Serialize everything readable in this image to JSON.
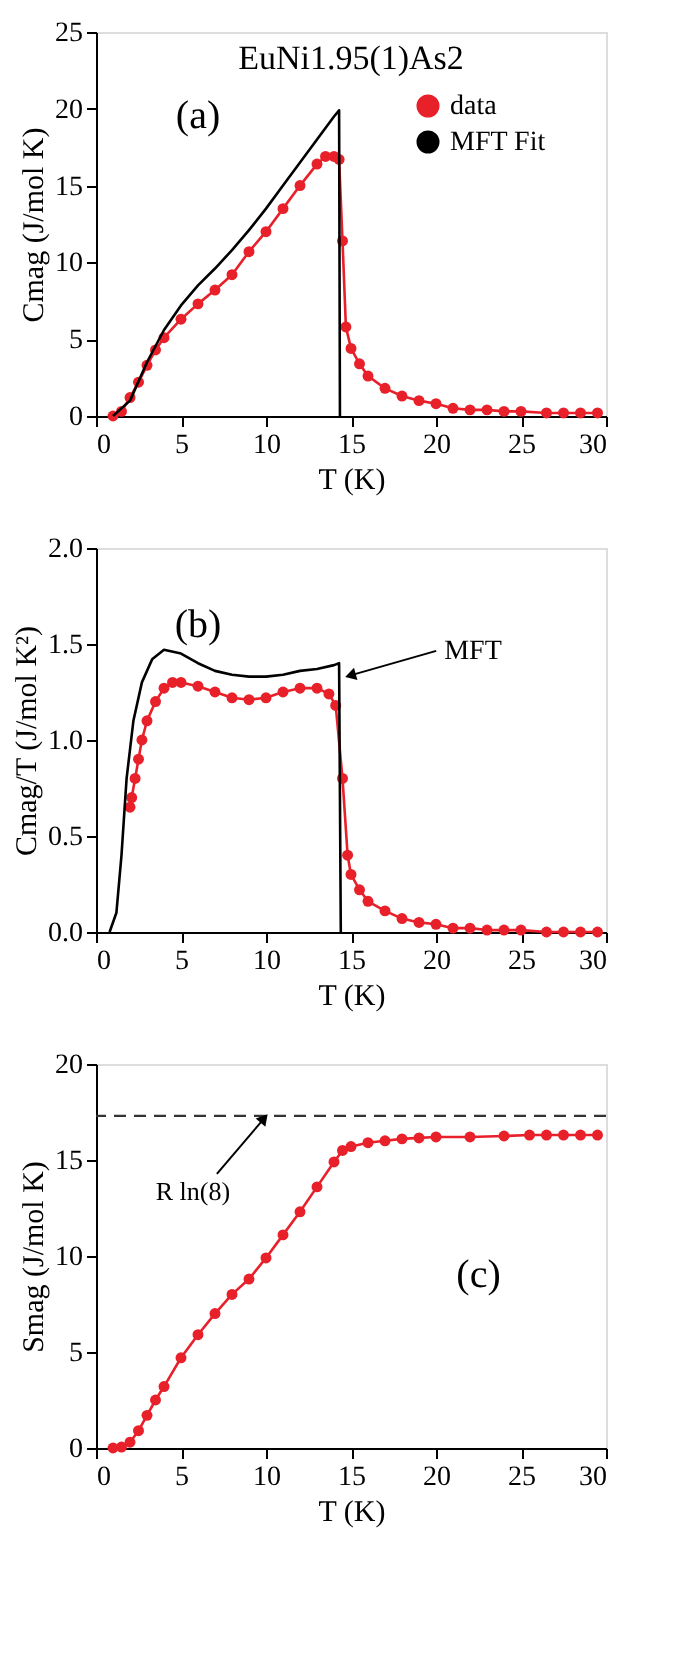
{
  "chart_data": [
    {
      "type": "line",
      "xlabel": "T (K)",
      "ylabel": "Cmag (J/mol K)",
      "xlim": [
        0,
        30
      ],
      "ylim": [
        0,
        25
      ],
      "xticks": [
        0,
        5,
        10,
        15,
        20,
        25,
        30
      ],
      "yticks": [
        0,
        5,
        10,
        15,
        20,
        25
      ],
      "grid": false,
      "legend": "top right",
      "annotations": [
        "EuNi1.95(1)As2",
        "(a)"
      ],
      "series": [
        {
          "name": "data",
          "color": "#e8202a",
          "marker": "circle",
          "x": [
            1.0,
            1.5,
            2.0,
            2.5,
            3.0,
            3.5,
            4.0,
            5.0,
            6.0,
            7.0,
            8.0,
            9.0,
            10.0,
            11.0,
            12.0,
            13.0,
            13.5,
            14.0,
            14.3,
            14.5,
            14.7,
            15.0,
            15.5,
            16.0,
            17.0,
            18.0,
            19.0,
            20.0,
            21.0,
            22.0,
            23.0,
            24.0,
            25.0,
            26.5,
            27.5,
            28.5,
            29.5
          ],
          "values": [
            0,
            0.3,
            1.2,
            2.2,
            3.3,
            4.3,
            5.1,
            6.3,
            7.3,
            8.2,
            9.2,
            10.7,
            12.0,
            13.5,
            15.0,
            16.4,
            16.9,
            16.9,
            16.7,
            11.4,
            5.8,
            4.4,
            3.4,
            2.6,
            1.8,
            1.3,
            1.0,
            0.8,
            0.5,
            0.4,
            0.4,
            0.3,
            0.3,
            0.2,
            0.2,
            0.2,
            0.2
          ]
        },
        {
          "name": "MFT Fit",
          "color": "#000000",
          "marker": "none",
          "x": [
            1.0,
            2.0,
            3.0,
            4.0,
            5.0,
            6.0,
            7.0,
            8.0,
            9.0,
            10.0,
            11.0,
            12.0,
            13.0,
            14.0,
            14.3,
            14.35
          ],
          "values": [
            0,
            1.0,
            3.5,
            5.6,
            7.2,
            8.5,
            9.6,
            10.8,
            12.1,
            13.5,
            15.0,
            16.5,
            18.0,
            19.5,
            19.9,
            0
          ]
        }
      ]
    },
    {
      "type": "line",
      "xlabel": "T (K)",
      "ylabel": "Cmag/T (J/mol K²)",
      "xlim": [
        0,
        30
      ],
      "ylim": [
        0,
        2
      ],
      "xticks": [
        0,
        5,
        10,
        15,
        20,
        25,
        30
      ],
      "yticks": [
        {
          "value": 0,
          "label": "0.0"
        },
        {
          "value": 0.5,
          "label": "0.5"
        },
        {
          "value": 1,
          "label": "1.0"
        },
        {
          "value": 1.5,
          "label": "1.5"
        },
        {
          "value": 2,
          "label": "2.0"
        }
      ],
      "grid": false,
      "annotations": [
        "(b)",
        {
          "text": "MFT",
          "x": 14.6,
          "y": 1.36
        }
      ],
      "series": [
        {
          "color": "#e8202a",
          "marker": "circle",
          "x": [
            2.0,
            2.1,
            2.3,
            2.5,
            2.7,
            3.0,
            3.5,
            4.0,
            4.5,
            5.0,
            6.0,
            7.0,
            8.0,
            9.0,
            10.0,
            11.0,
            12.0,
            13.0,
            13.7,
            14.1,
            14.5,
            14.8,
            15.0,
            15.5,
            16.0,
            17.0,
            18.0,
            19.0,
            20.0,
            21.0,
            22.0,
            23.0,
            24.0,
            25.0,
            26.5,
            27.5,
            28.5,
            29.5
          ],
          "values": [
            0.65,
            0.7,
            0.8,
            0.9,
            1.0,
            1.1,
            1.2,
            1.27,
            1.3,
            1.3,
            1.28,
            1.25,
            1.22,
            1.21,
            1.22,
            1.25,
            1.27,
            1.27,
            1.24,
            1.18,
            0.8,
            0.4,
            0.3,
            0.22,
            0.16,
            0.11,
            0.07,
            0.05,
            0.04,
            0.02,
            0.02,
            0.01,
            0.01,
            0.01,
            0.0,
            0.0,
            0.0,
            0.0
          ]
        },
        {
          "color": "#000000",
          "marker": "none",
          "x": [
            0.8,
            1.2,
            1.5,
            1.8,
            2.2,
            2.7,
            3.3,
            4.0,
            5.0,
            6.0,
            7.0,
            8.0,
            9.0,
            10.0,
            11.0,
            12.0,
            13.0,
            14.0,
            14.3,
            14.4
          ],
          "values": [
            0,
            0.1,
            0.4,
            0.8,
            1.1,
            1.3,
            1.42,
            1.47,
            1.45,
            1.4,
            1.36,
            1.34,
            1.33,
            1.33,
            1.34,
            1.36,
            1.37,
            1.39,
            1.4,
            0
          ]
        }
      ]
    },
    {
      "type": "line",
      "xlabel": "T (K)",
      "ylabel": "Smag (J/mol K)",
      "xlim": [
        0,
        30
      ],
      "ylim": [
        0,
        20
      ],
      "xticks": [
        0,
        5,
        10,
        15,
        20,
        25,
        30
      ],
      "yticks": [
        0,
        5,
        10,
        15,
        20
      ],
      "grid": false,
      "annotations": [
        "(c)"
      ],
      "ref_lines": [
        {
          "axis": "y",
          "value": 17.3,
          "label": "R ln(8)",
          "color": "#333333",
          "line_style": "dashed"
        }
      ],
      "series": [
        {
          "color": "#e8202a",
          "marker": "circle",
          "x": [
            1.0,
            1.5,
            2.0,
            2.5,
            3.0,
            3.5,
            4.0,
            5.0,
            6.0,
            7.0,
            8.0,
            9.0,
            10.0,
            11.0,
            12.0,
            13.0,
            14.0,
            14.5,
            15.0,
            16.0,
            17.0,
            18.0,
            19.0,
            20.0,
            22.0,
            24.0,
            25.5,
            26.5,
            27.5,
            28.5,
            29.5
          ],
          "values": [
            0,
            0.05,
            0.3,
            0.9,
            1.7,
            2.5,
            3.2,
            4.7,
            5.9,
            7.0,
            8.0,
            8.8,
            9.9,
            11.1,
            12.3,
            13.6,
            14.9,
            15.5,
            15.7,
            15.9,
            16.0,
            16.1,
            16.15,
            16.2,
            16.2,
            16.25,
            16.3,
            16.3,
            16.3,
            16.3,
            16.3
          ]
        }
      ]
    }
  ]
}
